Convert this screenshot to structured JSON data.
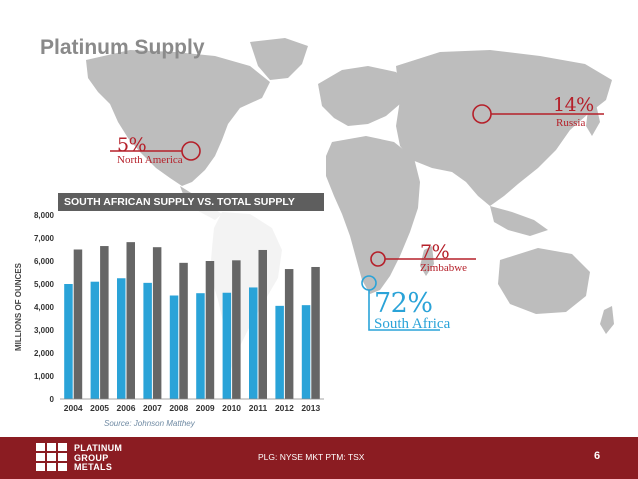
{
  "slide": {
    "title": "Platinum Supply",
    "source": "Source: Johnson Matthey",
    "footer": {
      "logo_lines": [
        "PLATINUM",
        "GROUP",
        "METALS"
      ],
      "ticker": "PLG: NYSE MKT PTM: TSX",
      "page_number": "6"
    },
    "colors": {
      "footer": "#8b1c22",
      "accent_red": "#b5202a",
      "accent_blue": "#2aa3d8",
      "map": "#bdbdbd"
    }
  },
  "callouts": [
    {
      "percent": "14%",
      "region": "Russia",
      "color": "#b5202a"
    },
    {
      "percent": "5%",
      "region": "North America",
      "color": "#b5202a"
    },
    {
      "percent": "7%",
      "region": "Zimbabwe",
      "color": "#b5202a"
    },
    {
      "percent": "72%",
      "region": "South Africa",
      "color": "#2aa3d8"
    }
  ],
  "chart_data": {
    "type": "bar",
    "title": "SOUTH AFRICAN SUPPLY VS. TOTAL SUPPLY",
    "ylabel": "MILLIONS OF OUNCES",
    "xlabel": "",
    "categories": [
      "2004",
      "2005",
      "2006",
      "2007",
      "2008",
      "2009",
      "2010",
      "2011",
      "2012",
      "2013"
    ],
    "series": [
      {
        "values": [
          5000,
          5100,
          5250,
          5050,
          4500,
          4600,
          4620,
          4850,
          4050,
          4080
        ],
        "color": "#2aa3d8"
      },
      {
        "values": [
          6500,
          6650,
          6820,
          6600,
          5920,
          6000,
          6030,
          6480,
          5650,
          5740
        ],
        "color": "#666666"
      }
    ],
    "ylim": [
      0,
      8000
    ],
    "yticks": [
      "0",
      "1,000",
      "2,000",
      "3,000",
      "4,000",
      "5,000",
      "6,000",
      "7,000",
      "8,000"
    ],
    "grid": false,
    "legend": "none"
  }
}
